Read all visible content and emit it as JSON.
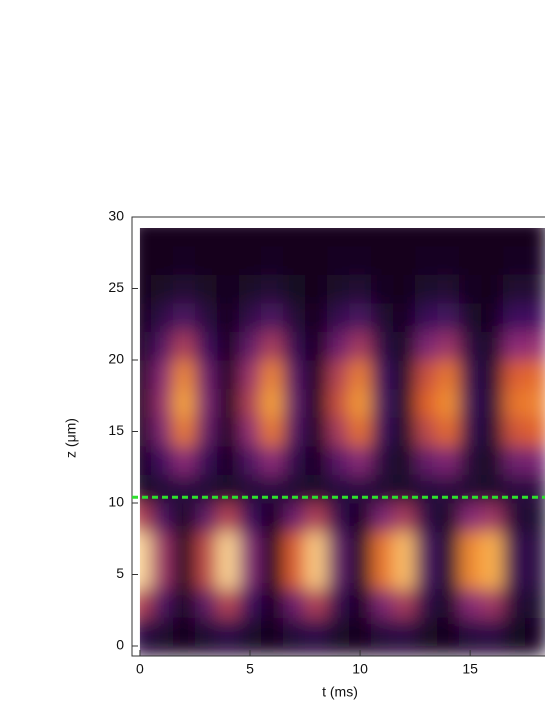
{
  "chart_data": {
    "type": "heatmap",
    "xlabel": "t (ms)",
    "ylabel": "z (μm)",
    "xlim": [
      -0.36,
      18.4
    ],
    "ylim": [
      -0.7,
      30
    ],
    "xticks": [
      0,
      5,
      10,
      15
    ],
    "yticks": [
      0,
      5,
      10,
      15,
      20,
      25,
      30
    ],
    "x": [
      0,
      1,
      2,
      3,
      4,
      5,
      6,
      7,
      8,
      9,
      10,
      11,
      12,
      13,
      14,
      15,
      16,
      17,
      18
    ],
    "y": [
      1,
      3,
      5,
      7,
      9,
      11,
      13,
      15,
      17,
      19,
      21,
      23,
      25,
      27,
      29
    ],
    "z": [
      [
        0.15,
        0.07,
        0,
        0.08,
        0.15,
        0.06,
        0,
        0.1,
        0.15,
        0.05,
        0.01,
        0.11,
        0.14,
        0.04,
        0.01,
        0.12,
        0.14,
        0.03,
        0.02
      ],
      [
        0.5,
        0.24,
        0,
        0.28,
        0.5,
        0.2,
        0.01,
        0.32,
        0.49,
        0.16,
        0.02,
        0.36,
        0.47,
        0.13,
        0.04,
        0.39,
        0.45,
        0.09,
        0.06
      ],
      [
        0.92,
        0.44,
        0,
        0.52,
        0.91,
        0.37,
        0.01,
        0.59,
        0.89,
        0.29,
        0.04,
        0.66,
        0.86,
        0.23,
        0.07,
        0.72,
        0.83,
        0.17,
        0.11
      ],
      [
        0.92,
        0.44,
        0,
        0.52,
        0.91,
        0.37,
        0.01,
        0.59,
        0.89,
        0.29,
        0.04,
        0.66,
        0.86,
        0.23,
        0.07,
        0.72,
        0.83,
        0.17,
        0.11
      ],
      [
        0.5,
        0.24,
        0,
        0.28,
        0.5,
        0.2,
        0.01,
        0.32,
        0.49,
        0.16,
        0.02,
        0.36,
        0.47,
        0.13,
        0.04,
        0.39,
        0.45,
        0.09,
        0.06
      ],
      [
        0.05,
        0.08,
        0.12,
        0.08,
        0.05,
        0.09,
        0.12,
        0.07,
        0.05,
        0.1,
        0.12,
        0.07,
        0.05,
        0.1,
        0.11,
        0.07,
        0.05,
        0.11,
        0.11
      ],
      [
        0,
        0.21,
        0.4,
        0.18,
        0.01,
        0.24,
        0.4,
        0.15,
        0.01,
        0.27,
        0.39,
        0.11,
        0.03,
        0.3,
        0.37,
        0.09,
        0.04,
        0.33,
        0.35
      ],
      [
        0,
        0.36,
        0.68,
        0.3,
        0.01,
        0.41,
        0.67,
        0.25,
        0.02,
        0.46,
        0.65,
        0.19,
        0.04,
        0.51,
        0.63,
        0.15,
        0.07,
        0.56,
        0.6
      ],
      [
        0,
        0.42,
        0.8,
        0.35,
        0.01,
        0.48,
        0.79,
        0.29,
        0.02,
        0.54,
        0.77,
        0.22,
        0.05,
        0.6,
        0.74,
        0.18,
        0.08,
        0.66,
        0.7
      ],
      [
        0,
        0.38,
        0.72,
        0.32,
        0.01,
        0.43,
        0.71,
        0.26,
        0.02,
        0.49,
        0.69,
        0.2,
        0.05,
        0.54,
        0.67,
        0.16,
        0.07,
        0.59,
        0.63
      ],
      [
        0,
        0.25,
        0.48,
        0.21,
        0.01,
        0.29,
        0.47,
        0.17,
        0.01,
        0.32,
        0.46,
        0.13,
        0.03,
        0.36,
        0.44,
        0.11,
        0.05,
        0.4,
        0.42
      ],
      [
        0,
        0.13,
        0.24,
        0.11,
        0,
        0.14,
        0.24,
        0.09,
        0.01,
        0.16,
        0.23,
        0.07,
        0.02,
        0.18,
        0.22,
        0.05,
        0.02,
        0.2,
        0.21
      ],
      [
        0,
        0.04,
        0.08,
        0.04,
        0,
        0.05,
        0.08,
        0.03,
        0,
        0.05,
        0.08,
        0.02,
        0.01,
        0.06,
        0.07,
        0.02,
        0.01,
        0.07,
        0.07
      ],
      [
        0,
        0.01,
        0.02,
        0.01,
        0,
        0.01,
        0.02,
        0.01,
        0,
        0.02,
        0.02,
        0.01,
        0,
        0.02,
        0.02,
        0.01,
        0,
        0.02,
        0.02
      ],
      [
        0,
        0,
        0,
        0,
        0,
        0,
        0,
        0,
        0,
        0,
        0,
        0,
        0,
        0,
        0,
        0,
        0,
        0,
        0
      ]
    ],
    "colormap": [
      "#12051a",
      "#3d0f5e",
      "#8c2a78",
      "#e0602c",
      "#f9a435",
      "#fffbe2"
    ],
    "hline": {
      "value": 10.4,
      "color": "#2ee02e"
    }
  }
}
